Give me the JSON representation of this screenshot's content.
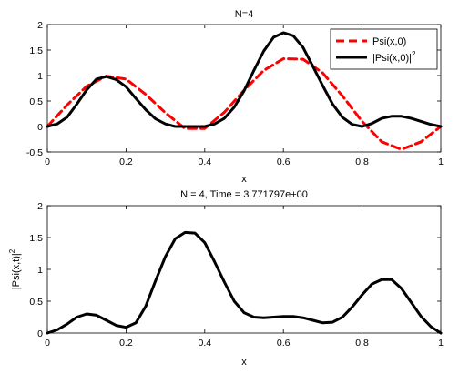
{
  "chart_data": [
    {
      "type": "line",
      "title": "N=4",
      "xlabel": "x",
      "ylabel": "",
      "xlim": [
        0,
        1
      ],
      "ylim": [
        -0.5,
        2
      ],
      "xticks": [
        "0",
        "0.2",
        "0.4",
        "0.6",
        "0.8",
        "1"
      ],
      "yticks": [
        "-0.5",
        "0",
        "0.5",
        "1",
        "1.5",
        "2"
      ],
      "grid": false,
      "legend_position": "top-right",
      "series": [
        {
          "name": "Psi(x,0)",
          "color": "#ff0000",
          "style": "dashed",
          "x": [
            0,
            0.05,
            0.1,
            0.15,
            0.2,
            0.25,
            0.3,
            0.35,
            0.4,
            0.45,
            0.5,
            0.55,
            0.6,
            0.65,
            0.7,
            0.75,
            0.8,
            0.85,
            0.9,
            0.95,
            1
          ],
          "y": [
            0,
            0.42,
            0.79,
            0.99,
            0.93,
            0.63,
            0.27,
            -0.04,
            -0.04,
            0.28,
            0.71,
            1.1,
            1.33,
            1.32,
            1.05,
            0.6,
            0.1,
            -0.3,
            -0.45,
            -0.3,
            0
          ]
        },
        {
          "name": "|Psi(x,0)|",
          "name_superscript": "2",
          "color": "#000000",
          "style": "solid",
          "x": [
            0,
            0.025,
            0.05,
            0.075,
            0.1,
            0.125,
            0.15,
            0.175,
            0.2,
            0.225,
            0.25,
            0.275,
            0.3,
            0.325,
            0.35,
            0.375,
            0.4,
            0.425,
            0.45,
            0.475,
            0.5,
            0.525,
            0.55,
            0.575,
            0.6,
            0.625,
            0.65,
            0.675,
            0.7,
            0.725,
            0.75,
            0.775,
            0.8,
            0.825,
            0.85,
            0.875,
            0.9,
            0.925,
            0.95,
            0.975,
            1
          ],
          "y": [
            0,
            0.05,
            0.18,
            0.44,
            0.72,
            0.93,
            0.98,
            0.92,
            0.78,
            0.55,
            0.33,
            0.15,
            0.05,
            0.0,
            0.0,
            0.0,
            0.0,
            0.05,
            0.16,
            0.38,
            0.7,
            1.1,
            1.48,
            1.75,
            1.84,
            1.78,
            1.55,
            1.18,
            0.8,
            0.44,
            0.18,
            0.04,
            0.0,
            0.06,
            0.16,
            0.2,
            0.2,
            0.16,
            0.1,
            0.04,
            0
          ]
        }
      ]
    },
    {
      "type": "line",
      "title": "N = 4, Time = 3.771797e+00",
      "xlabel": "x",
      "ylabel": "|Psi(x,t)|",
      "ylabel_superscript": "2",
      "xlim": [
        0,
        1
      ],
      "ylim": [
        0,
        2
      ],
      "xticks": [
        "0",
        "0.2",
        "0.4",
        "0.6",
        "0.8",
        "1"
      ],
      "yticks": [
        "0",
        "0.5",
        "1",
        "1.5",
        "2"
      ],
      "grid": false,
      "series": [
        {
          "color": "#000000",
          "style": "solid",
          "x": [
            0,
            0.025,
            0.05,
            0.075,
            0.1,
            0.125,
            0.15,
            0.175,
            0.2,
            0.225,
            0.25,
            0.275,
            0.3,
            0.325,
            0.35,
            0.375,
            0.4,
            0.425,
            0.45,
            0.475,
            0.5,
            0.525,
            0.55,
            0.575,
            0.6,
            0.625,
            0.65,
            0.675,
            0.7,
            0.725,
            0.75,
            0.775,
            0.8,
            0.825,
            0.85,
            0.875,
            0.9,
            0.925,
            0.95,
            0.975,
            1
          ],
          "y": [
            0,
            0.05,
            0.14,
            0.25,
            0.3,
            0.28,
            0.2,
            0.12,
            0.09,
            0.16,
            0.42,
            0.82,
            1.2,
            1.48,
            1.58,
            1.57,
            1.42,
            1.12,
            0.8,
            0.5,
            0.32,
            0.25,
            0.24,
            0.25,
            0.26,
            0.26,
            0.24,
            0.2,
            0.16,
            0.17,
            0.25,
            0.41,
            0.6,
            0.77,
            0.84,
            0.84,
            0.7,
            0.48,
            0.26,
            0.1,
            0
          ]
        }
      ]
    }
  ]
}
